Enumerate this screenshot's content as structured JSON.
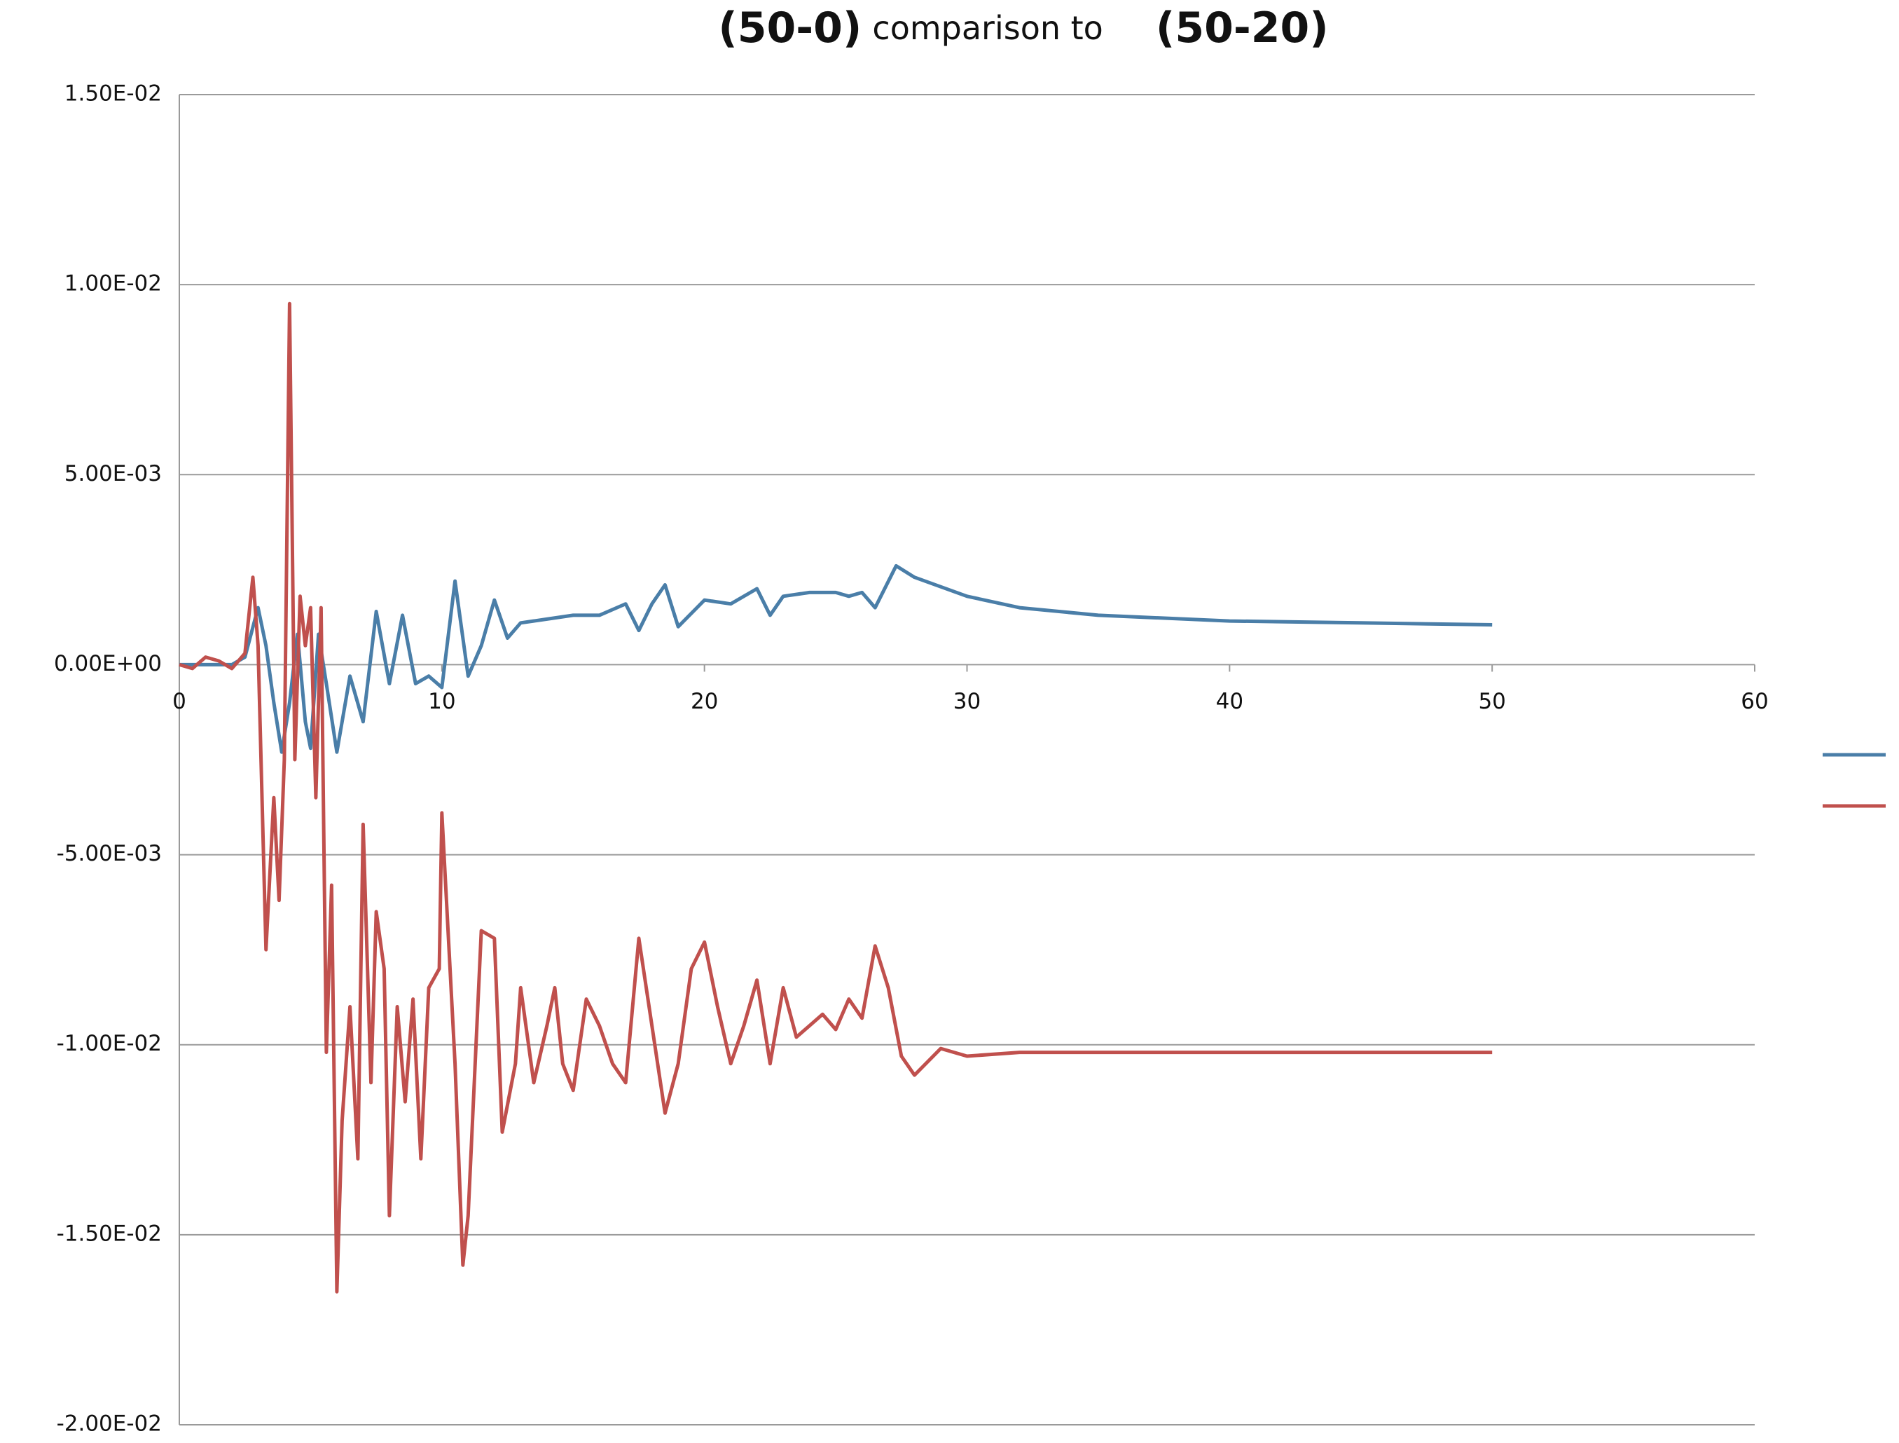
{
  "chart_data": {
    "type": "line",
    "title": [
      "(50-0)",
      "comparison to",
      "(50-20)"
    ],
    "xlim": [
      0,
      60
    ],
    "xticks": [
      0,
      10,
      20,
      30,
      40,
      50,
      60
    ],
    "ylim": [
      -0.02,
      0.015
    ],
    "yticks": [
      {
        "value": -0.02,
        "label": "-2.00E-02"
      },
      {
        "value": -0.015,
        "label": "-1.50E-02"
      },
      {
        "value": -0.01,
        "label": "-1.00E-02"
      },
      {
        "value": -0.005,
        "label": "-5.00E-03"
      },
      {
        "value": 0,
        "label": "0.00E+00"
      },
      {
        "value": 0.005,
        "label": "5.00E-03"
      },
      {
        "value": 0.01,
        "label": "1.00E-02"
      },
      {
        "value": 0.015,
        "label": "1.50E-02"
      }
    ],
    "grid": true,
    "series": [
      {
        "color": "#4a7ea8",
        "x": [
          0,
          1,
          2,
          2.5,
          3,
          3.3,
          3.6,
          3.9,
          4.2,
          4.5,
          4.8,
          5,
          5.3,
          5.6,
          6,
          6.5,
          7,
          7.5,
          8,
          8.5,
          9,
          9.5,
          10,
          10.5,
          11,
          11.5,
          12,
          12.5,
          13,
          14,
          15,
          16,
          17,
          17.5,
          18,
          18.5,
          19,
          20,
          21,
          22,
          22.5,
          23,
          24,
          25,
          25.5,
          26,
          26.5,
          27.3,
          28,
          30,
          32,
          35,
          40,
          45,
          50
        ],
        "values": [
          0,
          0,
          0,
          0.0002,
          0.0015,
          0.0005,
          -0.001,
          -0.0023,
          -0.001,
          0.0008,
          -0.0015,
          -0.0022,
          0.0008,
          -0.0005,
          -0.0023,
          -0.0003,
          -0.0015,
          0.0014,
          -0.0005,
          0.0013,
          -0.0005,
          -0.0003,
          -0.0006,
          0.0022,
          -0.0003,
          0.0005,
          0.0017,
          0.0007,
          0.0011,
          0.0012,
          0.0013,
          0.0013,
          0.0016,
          0.0009,
          0.0016,
          0.0021,
          0.001,
          0.0017,
          0.0016,
          0.002,
          0.0013,
          0.0018,
          0.0019,
          0.0019,
          0.0018,
          0.0019,
          0.0015,
          0.0026,
          0.0023,
          0.0018,
          0.0015,
          0.0013,
          0.00115,
          0.0011,
          0.00105
        ]
      },
      {
        "color": "#c0504d",
        "x": [
          0,
          0.5,
          1,
          1.5,
          2,
          2.5,
          2.8,
          3,
          3.3,
          3.6,
          3.8,
          4,
          4.2,
          4.4,
          4.6,
          4.8,
          5,
          5.2,
          5.4,
          5.6,
          5.8,
          6,
          6.2,
          6.5,
          6.8,
          7,
          7.3,
          7.5,
          7.8,
          8,
          8.3,
          8.6,
          8.9,
          9.2,
          9.5,
          9.9,
          10,
          10.5,
          10.8,
          11,
          11.5,
          12,
          12.3,
          12.8,
          13,
          13.5,
          14,
          14.3,
          14.6,
          15,
          15.5,
          16,
          16.5,
          17,
          17.5,
          18,
          18.5,
          19,
          19.5,
          20,
          20.5,
          21,
          21.5,
          22,
          22.5,
          23,
          23.5,
          24,
          24.5,
          25,
          25.5,
          26,
          26.5,
          27,
          27.5,
          28,
          29,
          30,
          32,
          40,
          50
        ],
        "values": [
          0,
          -0.0001,
          0.0002,
          0.0001,
          -0.0001,
          0.0003,
          0.0023,
          0.0005,
          -0.0075,
          -0.0035,
          -0.0062,
          -0.0025,
          0.0095,
          -0.0025,
          0.0018,
          0.0005,
          0.0015,
          -0.0035,
          0.0015,
          -0.0102,
          -0.0058,
          -0.0165,
          -0.012,
          -0.009,
          -0.013,
          -0.0042,
          -0.011,
          -0.0065,
          -0.008,
          -0.0145,
          -0.009,
          -0.0115,
          -0.0088,
          -0.013,
          -0.0085,
          -0.008,
          -0.0039,
          -0.0105,
          -0.0158,
          -0.0145,
          -0.007,
          -0.0072,
          -0.0123,
          -0.0105,
          -0.0085,
          -0.011,
          -0.0095,
          -0.0085,
          -0.0105,
          -0.0112,
          -0.0088,
          -0.0095,
          -0.0105,
          -0.011,
          -0.0072,
          -0.0095,
          -0.0118,
          -0.0105,
          -0.008,
          -0.0073,
          -0.009,
          -0.0105,
          -0.0095,
          -0.0083,
          -0.0105,
          -0.0085,
          -0.0098,
          -0.0095,
          -0.0092,
          -0.0096,
          -0.0088,
          -0.0093,
          -0.0074,
          -0.0085,
          -0.0103,
          -0.0108,
          -0.0101,
          -0.0103,
          -0.0102,
          -0.0102,
          -0.0102
        ]
      }
    ]
  }
}
